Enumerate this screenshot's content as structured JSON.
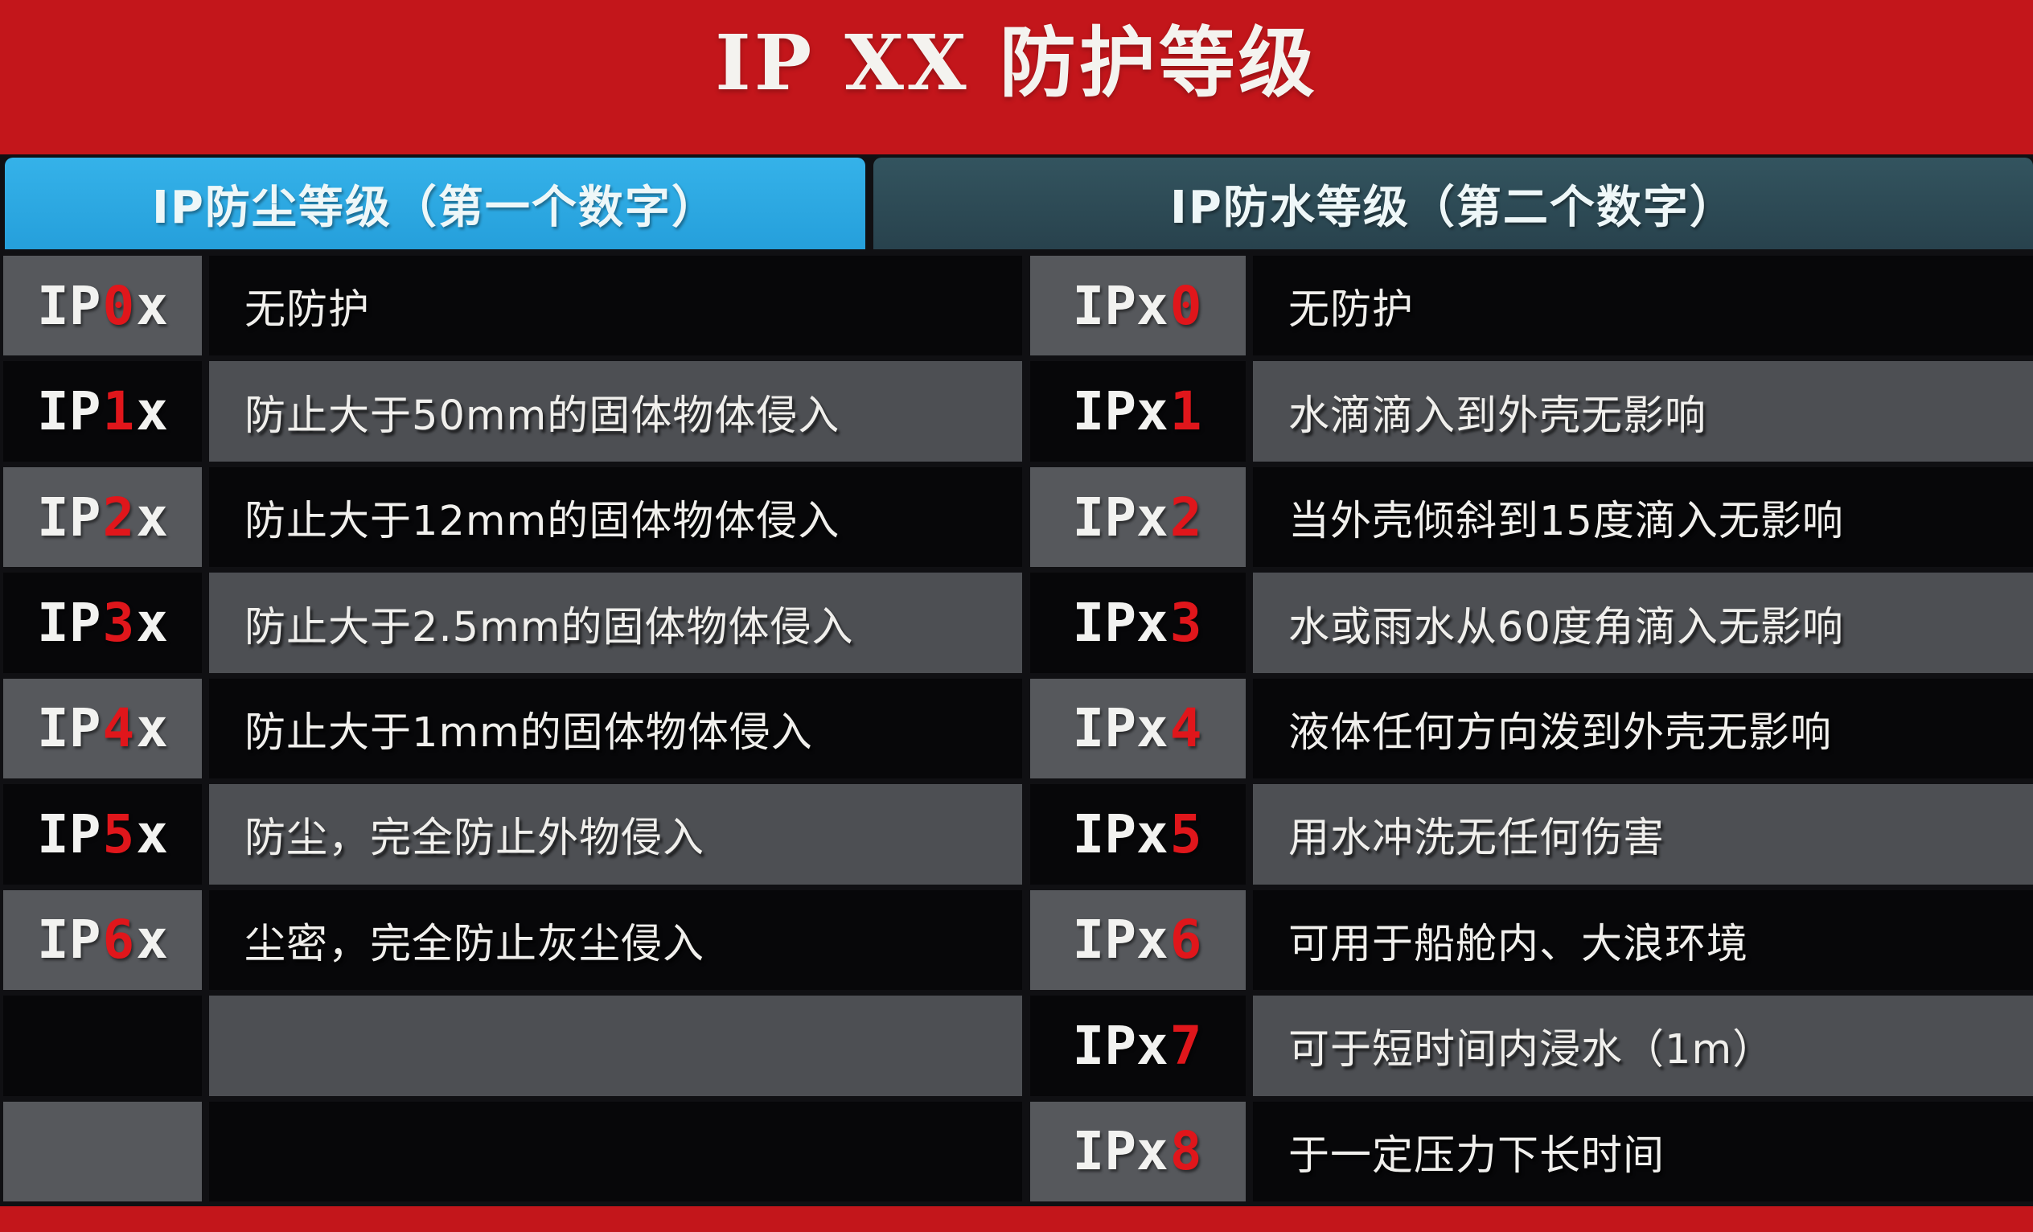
{
  "title": "IP XX 防护等级",
  "left_table": {
    "header": "IP防尘等级（第一个数字）",
    "rows": [
      {
        "prefix": "IP",
        "digit": "0",
        "suffix": "x",
        "desc": "无防护"
      },
      {
        "prefix": "IP",
        "digit": "1",
        "suffix": "x",
        "desc": "防止大于50mm的固体物体侵入"
      },
      {
        "prefix": "IP",
        "digit": "2",
        "suffix": "x",
        "desc": "防止大于12mm的固体物体侵入"
      },
      {
        "prefix": "IP",
        "digit": "3",
        "suffix": "x",
        "desc": "防止大于2.5mm的固体物体侵入"
      },
      {
        "prefix": "IP",
        "digit": "4",
        "suffix": "x",
        "desc": "防止大于1mm的固体物体侵入"
      },
      {
        "prefix": "IP",
        "digit": "5",
        "suffix": "x",
        "desc": "防尘，完全防止外物侵入"
      },
      {
        "prefix": "IP",
        "digit": "6",
        "suffix": "x",
        "desc": "尘密，完全防止灰尘侵入"
      },
      {
        "prefix": "",
        "digit": "",
        "suffix": "",
        "desc": ""
      },
      {
        "prefix": "",
        "digit": "",
        "suffix": "",
        "desc": ""
      }
    ]
  },
  "right_table": {
    "header": "IP防水等级（第二个数字）",
    "rows": [
      {
        "prefix": "IPx",
        "digit": "0",
        "suffix": "",
        "desc": "无防护"
      },
      {
        "prefix": "IPx",
        "digit": "1",
        "suffix": "",
        "desc": "水滴滴入到外壳无影响"
      },
      {
        "prefix": "IPx",
        "digit": "2",
        "suffix": "",
        "desc": "当外壳倾斜到15度滴入无影响"
      },
      {
        "prefix": "IPx",
        "digit": "3",
        "suffix": "",
        "desc": "水或雨水从60度角滴入无影响"
      },
      {
        "prefix": "IPx",
        "digit": "4",
        "suffix": "",
        "desc": "液体任何方向泼到外壳无影响"
      },
      {
        "prefix": "IPx",
        "digit": "5",
        "suffix": "",
        "desc": "用水冲洗无任何伤害"
      },
      {
        "prefix": "IPx",
        "digit": "6",
        "suffix": "",
        "desc": "可用于船舱内、大浪环境"
      },
      {
        "prefix": "IPx",
        "digit": "7",
        "suffix": "",
        "desc": "可于短时间内浸水（1m）"
      },
      {
        "prefix": "IPx",
        "digit": "8",
        "suffix": "",
        "desc": "于一定压力下长时间"
      }
    ]
  },
  "colors": {
    "background_red": "#c3161b",
    "header_blue": "#2aa7e0",
    "header_teal": "#2e4b57",
    "digit_red": "#e0161b",
    "cell_black": "#070709",
    "cell_gray_label": "#56585c",
    "cell_gray_desc": "#4d4f53",
    "text_white": "#f2f2f0"
  },
  "chart_data": [
    {
      "type": "table",
      "title": "IP防尘等级（第一个数字）",
      "rows": [
        [
          "IP0x",
          "无防护"
        ],
        [
          "IP1x",
          "防止大于50mm的固体物体侵入"
        ],
        [
          "IP2x",
          "防止大于12mm的固体物体侵入"
        ],
        [
          "IP3x",
          "防止大于2.5mm的固体物体侵入"
        ],
        [
          "IP4x",
          "防止大于1mm的固体物体侵入"
        ],
        [
          "IP5x",
          "防尘，完全防止外物侵入"
        ],
        [
          "IP6x",
          "尘密，完全防止灰尘侵入"
        ]
      ]
    },
    {
      "type": "table",
      "title": "IP防水等级（第二个数字）",
      "rows": [
        [
          "IPx0",
          "无防护"
        ],
        [
          "IPx1",
          "水滴滴入到外壳无影响"
        ],
        [
          "IPx2",
          "当外壳倾斜到15度滴入无影响"
        ],
        [
          "IPx3",
          "水或雨水从60度角滴入无影响"
        ],
        [
          "IPx4",
          "液体任何方向泼到外壳无影响"
        ],
        [
          "IPx5",
          "用水冲洗无任何伤害"
        ],
        [
          "IPx6",
          "可用于船舱内、大浪环境"
        ],
        [
          "IPx7",
          "可于短时间内浸水（1m）"
        ],
        [
          "IPx8",
          "于一定压力下长时间"
        ]
      ]
    }
  ]
}
